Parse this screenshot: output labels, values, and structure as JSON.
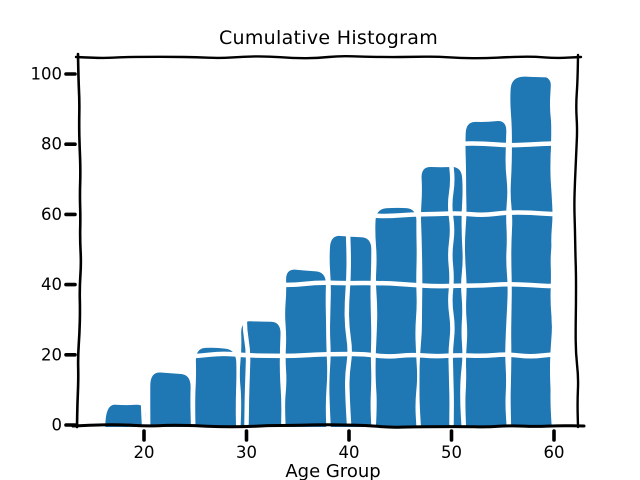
{
  "chart_data": {
    "type": "bar",
    "subtype": "cumulative-histogram",
    "title": "Cumulative Histogram",
    "xlabel": "Age Group",
    "ylabel": "",
    "style": "xkcd-sketch",
    "bar_color": "#1f77b4",
    "axis_color": "#000000",
    "background_color": "#ffffff",
    "grid_overlay_color": "#ffffff",
    "bin_edges": [
      16,
      20.4,
      24.8,
      29.2,
      33.6,
      38,
      42.4,
      46.8,
      51.2,
      55.6,
      60
    ],
    "cumulative_counts": [
      6,
      15,
      22,
      30,
      44,
      54,
      61,
      73,
      87,
      99
    ],
    "x_ticks": [
      20,
      30,
      40,
      50,
      60
    ],
    "y_ticks": [
      0,
      20,
      40,
      60,
      80,
      100
    ],
    "xlim": [
      13.8,
      62.2
    ],
    "ylim": [
      0,
      104
    ],
    "grid": true,
    "legend": null
  }
}
